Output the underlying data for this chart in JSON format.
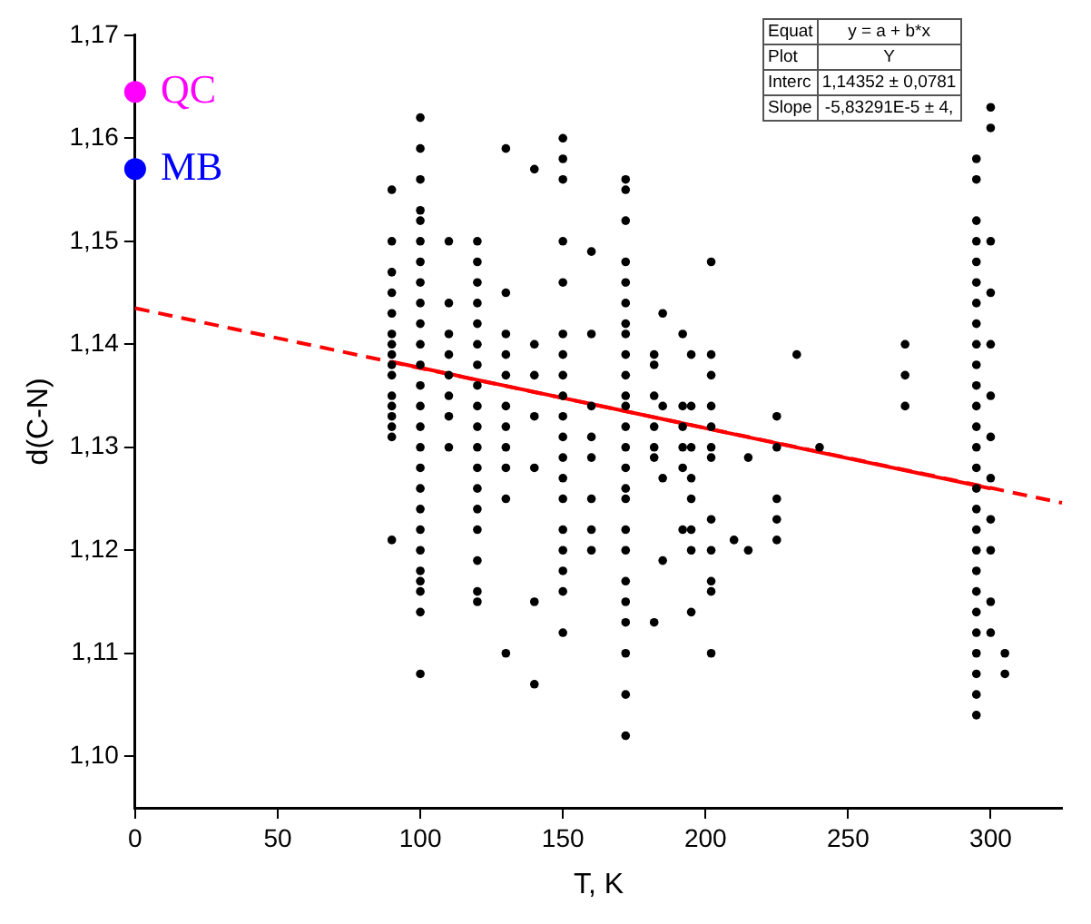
{
  "chart_data": {
    "type": "scatter",
    "xlabel": "T, K",
    "ylabel": "d(C-N)",
    "xlim": [
      0,
      325
    ],
    "ylim": [
      1.095,
      1.17
    ],
    "xticks": [
      0,
      50,
      100,
      150,
      200,
      250,
      300
    ],
    "yticks": [
      {
        "value": 1.1,
        "label": "1,10"
      },
      {
        "value": 1.11,
        "label": "1,11"
      },
      {
        "value": 1.12,
        "label": "1,12"
      },
      {
        "value": 1.13,
        "label": "1,13"
      },
      {
        "value": 1.14,
        "label": "1,14"
      },
      {
        "value": 1.15,
        "label": "1,15"
      },
      {
        "value": 1.16,
        "label": "1,16"
      },
      {
        "value": 1.17,
        "label": "1,17"
      }
    ],
    "grid": false,
    "legend": false,
    "marker": "circle",
    "annotations": [
      "Equat",
      "y = a + b*x",
      "Plot",
      "Y",
      "Interc",
      "1,14352 ± 0,0781",
      "Slope",
      "-5,83291E-5 ± 4,"
    ],
    "series": [
      {
        "type": "scatter",
        "color": "#000000",
        "x": [
          90,
          90,
          90,
          90,
          90,
          90,
          90,
          90,
          90,
          90,
          90,
          90,
          90,
          90,
          90,
          90,
          100,
          100,
          100,
          100,
          100,
          100,
          100,
          100,
          100,
          100,
          100,
          100,
          100,
          100,
          100,
          100,
          100,
          100,
          100,
          100,
          100,
          100,
          100,
          100,
          100,
          100,
          110,
          110,
          110,
          110,
          110,
          110,
          110,
          110,
          120,
          120,
          120,
          120,
          120,
          120,
          120,
          120,
          120,
          120,
          120,
          120,
          120,
          120,
          120,
          120,
          120,
          120,
          130,
          130,
          130,
          130,
          130,
          130,
          130,
          130,
          130,
          130,
          130,
          140,
          140,
          140,
          140,
          140,
          140,
          140,
          150,
          150,
          150,
          150,
          150,
          150,
          150,
          150,
          150,
          150,
          150,
          150,
          150,
          150,
          150,
          150,
          150,
          150,
          150,
          160,
          160,
          160,
          160,
          160,
          160,
          160,
          160,
          172,
          172,
          172,
          172,
          172,
          172,
          172,
          172,
          172,
          172,
          172,
          172,
          172,
          172,
          172,
          172,
          172,
          172,
          172,
          172,
          172,
          172,
          172,
          172,
          172,
          182,
          182,
          182,
          182,
          182,
          182,
          182,
          185,
          185,
          185,
          185,
          192,
          192,
          192,
          192,
          192,
          192,
          195,
          195,
          195,
          195,
          195,
          195,
          195,
          195,
          202,
          202,
          202,
          202,
          202,
          202,
          202,
          202,
          202,
          202,
          202,
          202,
          210,
          215,
          215,
          225,
          225,
          225,
          225,
          225,
          232,
          240,
          270,
          270,
          270,
          295,
          295,
          295,
          295,
          295,
          295,
          295,
          295,
          295,
          295,
          295,
          295,
          295,
          295,
          295,
          295,
          295,
          295,
          295,
          295,
          295,
          295,
          295,
          295,
          295,
          295,
          295,
          300,
          300,
          300,
          300,
          300,
          300,
          300,
          300,
          300,
          300,
          300,
          300,
          305,
          305
        ],
        "values": [
          1.155,
          1.15,
          1.147,
          1.145,
          1.143,
          1.141,
          1.14,
          1.139,
          1.138,
          1.137,
          1.135,
          1.134,
          1.133,
          1.132,
          1.131,
          1.121,
          1.162,
          1.159,
          1.156,
          1.153,
          1.152,
          1.15,
          1.148,
          1.146,
          1.144,
          1.142,
          1.14,
          1.138,
          1.136,
          1.134,
          1.132,
          1.13,
          1.128,
          1.126,
          1.124,
          1.122,
          1.12,
          1.118,
          1.117,
          1.116,
          1.114,
          1.108,
          1.15,
          1.144,
          1.141,
          1.139,
          1.137,
          1.135,
          1.133,
          1.13,
          1.15,
          1.148,
          1.146,
          1.144,
          1.142,
          1.14,
          1.138,
          1.136,
          1.134,
          1.132,
          1.13,
          1.128,
          1.126,
          1.124,
          1.122,
          1.119,
          1.116,
          1.115,
          1.159,
          1.145,
          1.141,
          1.139,
          1.137,
          1.134,
          1.132,
          1.13,
          1.128,
          1.125,
          1.11,
          1.157,
          1.14,
          1.137,
          1.133,
          1.128,
          1.115,
          1.107,
          1.16,
          1.158,
          1.156,
          1.15,
          1.146,
          1.141,
          1.139,
          1.137,
          1.135,
          1.133,
          1.131,
          1.129,
          1.127,
          1.125,
          1.122,
          1.12,
          1.118,
          1.116,
          1.112,
          1.149,
          1.141,
          1.134,
          1.131,
          1.129,
          1.125,
          1.122,
          1.12,
          1.156,
          1.155,
          1.152,
          1.148,
          1.146,
          1.144,
          1.142,
          1.141,
          1.139,
          1.137,
          1.135,
          1.134,
          1.132,
          1.13,
          1.128,
          1.126,
          1.125,
          1.122,
          1.12,
          1.117,
          1.115,
          1.113,
          1.11,
          1.106,
          1.102,
          1.139,
          1.138,
          1.135,
          1.132,
          1.13,
          1.129,
          1.113,
          1.143,
          1.134,
          1.127,
          1.119,
          1.141,
          1.134,
          1.132,
          1.13,
          1.128,
          1.122,
          1.139,
          1.134,
          1.13,
          1.127,
          1.125,
          1.122,
          1.12,
          1.114,
          1.148,
          1.139,
          1.137,
          1.134,
          1.132,
          1.13,
          1.129,
          1.123,
          1.12,
          1.117,
          1.116,
          1.11,
          1.121,
          1.129,
          1.12,
          1.133,
          1.13,
          1.125,
          1.123,
          1.121,
          1.139,
          1.13,
          1.14,
          1.137,
          1.134,
          1.158,
          1.156,
          1.152,
          1.15,
          1.148,
          1.146,
          1.144,
          1.142,
          1.14,
          1.138,
          1.136,
          1.134,
          1.132,
          1.13,
          1.128,
          1.126,
          1.124,
          1.122,
          1.12,
          1.118,
          1.116,
          1.114,
          1.112,
          1.11,
          1.108,
          1.106,
          1.104,
          1.163,
          1.161,
          1.15,
          1.145,
          1.14,
          1.135,
          1.131,
          1.127,
          1.123,
          1.12,
          1.115,
          1.112,
          1.11,
          1.108
        ]
      },
      {
        "type": "line",
        "color": "#ff0000",
        "line_style": "dashed",
        "marker": "none",
        "x": [
          0,
          325
        ],
        "values": [
          1.1435,
          1.1246
        ]
      },
      {
        "type": "line",
        "color": "#ff0000",
        "line_style": "solid",
        "marker": "none",
        "x": [
          90,
          300
        ],
        "values": [
          1.1383,
          1.126
        ]
      },
      {
        "type": "scatter",
        "name": "QC",
        "color": "#ff00ff",
        "x": [
          0
        ],
        "values": [
          1.1645
        ]
      },
      {
        "type": "scatter",
        "name": "MB",
        "color": "#0000ff",
        "x": [
          0
        ],
        "values": [
          1.157
        ]
      }
    ]
  }
}
